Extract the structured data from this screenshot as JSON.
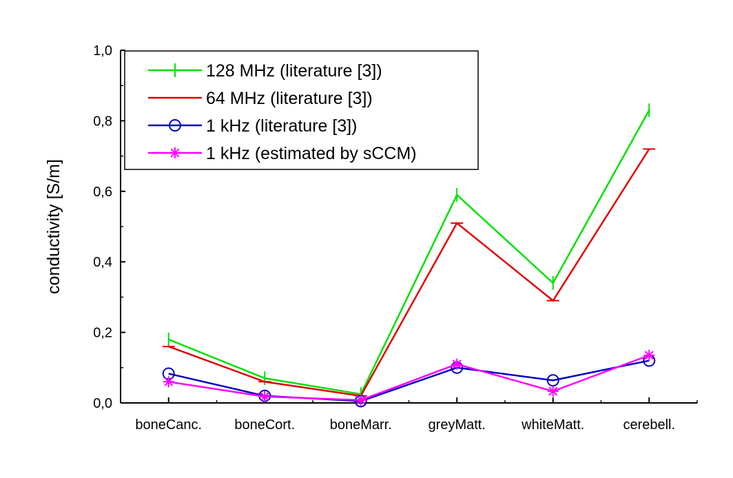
{
  "chart_data": {
    "type": "line",
    "title": "",
    "xlabel": "",
    "ylabel": "conductivity [S/m]",
    "categories": [
      "boneCanc.",
      "boneCort.",
      "boneMarr.",
      "greyMatt.",
      "whiteMatt.",
      "cerebell."
    ],
    "ylim": [
      0,
      1.0
    ],
    "yticks": [
      "0,0",
      "0,2",
      "0,4",
      "0,6",
      "0,8",
      "1,0"
    ],
    "grid": false,
    "legend_position": "top-left",
    "series": [
      {
        "name": "128 MHz (literature [3])",
        "color": "#00e000",
        "marker": "vbar",
        "values": [
          0.18,
          0.07,
          0.025,
          0.59,
          0.34,
          0.83
        ]
      },
      {
        "name": "64 MHz (literature [3])",
        "color": "#e00000",
        "marker": "hbar",
        "values": [
          0.16,
          0.06,
          0.02,
          0.51,
          0.29,
          0.72
        ]
      },
      {
        "name": "1 kHz  (literature [3])",
        "color": "#0000c0",
        "marker": "circle",
        "values": [
          0.083,
          0.02,
          0.005,
          0.1,
          0.064,
          0.12
        ]
      },
      {
        "name": "1 kHz (estimated by sCCM)",
        "color": "#ff00ff",
        "marker": "star",
        "values": [
          0.06,
          0.018,
          0.008,
          0.11,
          0.033,
          0.135
        ]
      }
    ]
  }
}
